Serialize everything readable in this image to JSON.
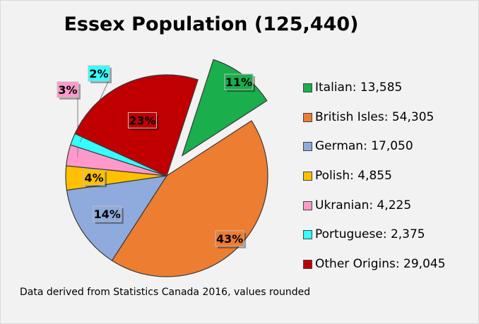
{
  "chart_data": {
    "type": "pie",
    "title": "Essex Population (125,440)",
    "note": "Data derived from Statistics Canada 2016, values rounded",
    "slices": [
      {
        "label": "Italian: 13,585",
        "value": 13585,
        "percent_label": "11%",
        "color": "#1aae4c",
        "exploded": true
      },
      {
        "label": "British Isles: 54,305",
        "value": 54305,
        "percent_label": "43%",
        "color": "#ed7d31",
        "exploded": false
      },
      {
        "label": "German: 17,050",
        "value": 17050,
        "percent_label": "14%",
        "color": "#8faadc",
        "exploded": false
      },
      {
        "label": "Polish: 4,855",
        "value": 4855,
        "percent_label": "4%",
        "color": "#ffc000",
        "exploded": false
      },
      {
        "label": "Ukranian: 4,225",
        "value": 4225,
        "percent_label": "3%",
        "color": "#ff99cc",
        "exploded": false
      },
      {
        "label": "Portuguese: 2,375",
        "value": 2375,
        "percent_label": "2%",
        "color": "#33ffff",
        "exploded": false
      },
      {
        "label": "Other Origins: 29,045",
        "value": 29045,
        "percent_label": "23%",
        "color": "#c00000",
        "exploded": false
      }
    ],
    "legend_position": "right"
  }
}
